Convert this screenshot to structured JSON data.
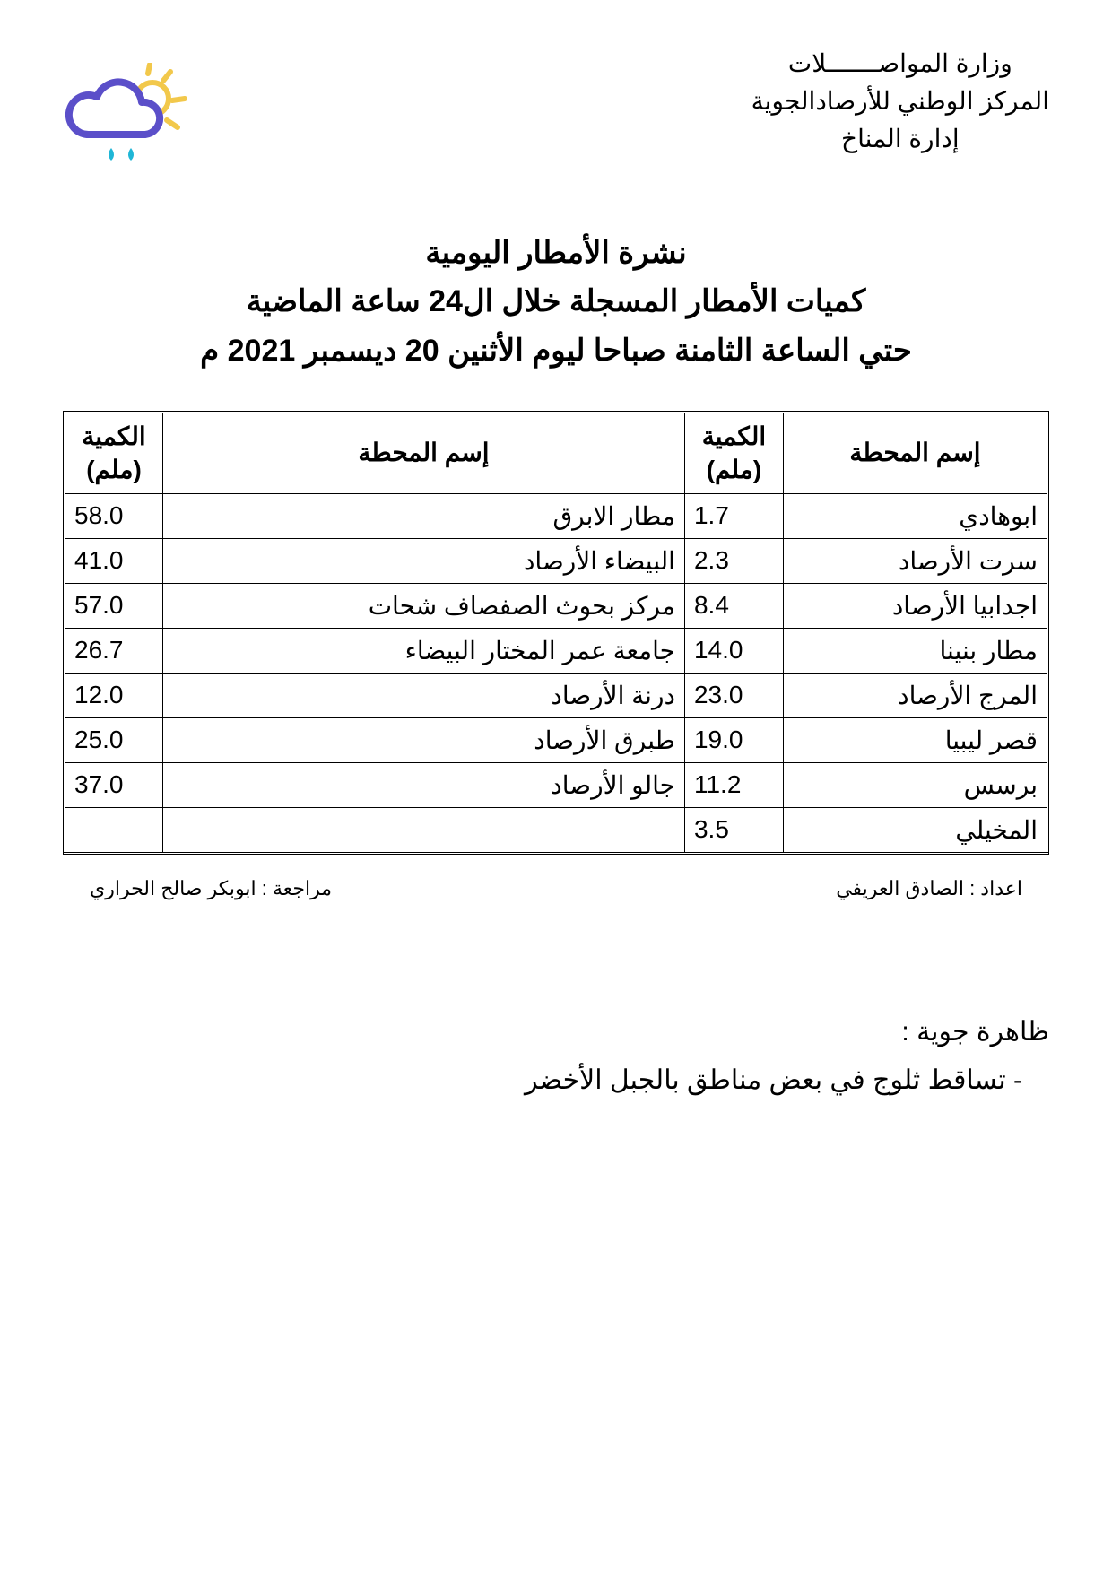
{
  "header": {
    "ministry": "وزارة المواصـــــــلات",
    "center": "المركز الوطني للأرصادالجوية",
    "department": "إدارة المناخ"
  },
  "icon": {
    "name": "rain-cloud-sun-icon",
    "cloud_color": "#5b4fc9",
    "sun_color": "#f2c84b",
    "drop_color": "#1fb6d6"
  },
  "title": {
    "line1": "نشرة الأمطار اليومية",
    "line2": "كميات الأمطار المسجلة خلال ال24 ساعة الماضية",
    "line3": "حتي الساعة الثامنة صباحا ليوم الأثنين  20  ديسمبر 2021 م"
  },
  "table": {
    "columns": {
      "station": "إسم المحطة",
      "amount": "الكمية (ملم)"
    },
    "rows": [
      {
        "right_station": "ابوهادي",
        "right_amount": "1.7",
        "left_station": "مطار الابرق",
        "left_amount": "58.0"
      },
      {
        "right_station": "سرت الأرصاد",
        "right_amount": "2.3",
        "left_station": "البيضاء الأرصاد",
        "left_amount": "41.0"
      },
      {
        "right_station": "اجدابيا الأرصاد",
        "right_amount": "8.4",
        "left_station": "مركز بحوث الصفصاف شحات",
        "left_amount": "57.0"
      },
      {
        "right_station": "مطار بنينا",
        "right_amount": "14.0",
        "left_station": "جامعة عمر المختار البيضاء",
        "left_amount": "26.7"
      },
      {
        "right_station": "المرج الأرصاد",
        "right_amount": "23.0",
        "left_station": "درنة الأرصاد",
        "left_amount": "12.0"
      },
      {
        "right_station": "قصر ليبيا",
        "right_amount": "19.0",
        "left_station": "طبرق الأرصاد",
        "left_amount": "25.0"
      },
      {
        "right_station": "برسس",
        "right_amount": "11.2",
        "left_station": "جالو الأرصاد",
        "left_amount": "37.0"
      },
      {
        "right_station": "المخيلي",
        "right_amount": "3.5",
        "left_station": "",
        "left_amount": ""
      }
    ]
  },
  "credits": {
    "prepared_by_label": "اعداد :",
    "prepared_by": "الصادق العريفي",
    "reviewed_by_label": "مراجعة :",
    "reviewed_by": "ابوبكر صالح الحراري"
  },
  "phenomena": {
    "heading": "ظاهرة جوية :",
    "items": [
      "تساقط ثلوج في بعض مناطق بالجبل الأخضر"
    ]
  }
}
